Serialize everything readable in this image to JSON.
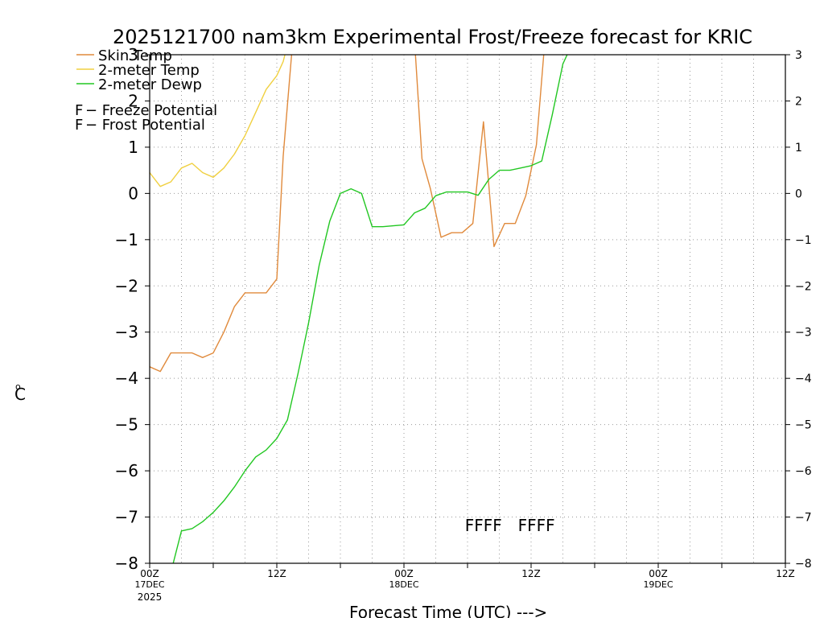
{
  "chart_data": {
    "type": "line",
    "title": "2025121700 nam3km Experimental Frost/Freeze forecast for KRIC",
    "xlabel": "Forecast Time (UTC) --->",
    "ylabel_unit": "o",
    "ylabel_letter": "C",
    "ylim": [
      -8,
      3
    ],
    "xlim_hours": [
      0,
      60
    ],
    "grid": true,
    "y_ticks": [
      -8,
      -7,
      -6,
      -5,
      -4,
      -3,
      -2,
      -1,
      0,
      1,
      2,
      3
    ],
    "y_tick_labels": [
      "−8",
      "−7",
      "−6",
      "−5",
      "−4",
      "−3",
      "−2",
      "−1",
      "0",
      "1",
      "2",
      "3"
    ],
    "x_ticks": [
      {
        "hour": 0,
        "label": "00Z",
        "date": "17DEC",
        "year": "2025"
      },
      {
        "hour": 12,
        "label": "12Z",
        "date": "",
        "year": ""
      },
      {
        "hour": 24,
        "label": "00Z",
        "date": "18DEC",
        "year": ""
      },
      {
        "hour": 36,
        "label": "12Z",
        "date": "",
        "year": ""
      },
      {
        "hour": 48,
        "label": "00Z",
        "date": "19DEC",
        "year": ""
      },
      {
        "hour": 60,
        "label": "12Z",
        "date": "",
        "year": ""
      }
    ],
    "series": [
      {
        "name": "Skin Temp",
        "color": "#e08a3c",
        "x": [
          0,
          1,
          2,
          3,
          4,
          5,
          6,
          7,
          8,
          9,
          10,
          11,
          12,
          12.6,
          13.5,
          25,
          25.7,
          26.5,
          27.5,
          28.5,
          29.5,
          30.5,
          31.5,
          32.5,
          33.5,
          34.5,
          35.5,
          36.5,
          37.3
        ],
        "values": [
          -3.75,
          -3.85,
          -3.45,
          -3.45,
          -3.45,
          -3.55,
          -3.45,
          -3.0,
          -2.45,
          -2.15,
          -2.15,
          -2.15,
          -1.85,
          0.8,
          3.3,
          3.3,
          0.75,
          0.1,
          -0.95,
          -0.85,
          -0.85,
          -0.65,
          1.55,
          -1.15,
          -0.65,
          -0.65,
          -0.05,
          1.05,
          3.3
        ]
      },
      {
        "name": "2-meter Temp",
        "color": "#f0d040",
        "x": [
          0,
          1,
          2,
          3,
          4,
          5,
          6,
          7,
          8,
          9,
          10,
          11,
          12,
          12.6,
          13.1
        ],
        "values": [
          0.45,
          0.15,
          0.25,
          0.55,
          0.65,
          0.45,
          0.35,
          0.55,
          0.85,
          1.25,
          1.75,
          2.25,
          2.55,
          2.85,
          3.3
        ]
      },
      {
        "name": "2-meter Dewp",
        "color": "#22c722",
        "x": [
          2,
          3,
          4,
          5,
          6,
          7,
          8,
          9,
          10,
          11,
          12,
          13,
          14,
          15,
          16,
          17,
          18,
          19,
          20,
          21,
          22,
          23,
          24,
          25,
          26,
          27,
          28,
          29,
          30,
          31,
          32,
          33,
          34,
          35,
          36,
          37,
          38,
          39,
          40,
          41,
          42,
          43,
          44
        ],
        "values": [
          -8.2,
          -7.3,
          -7.25,
          -7.1,
          -6.9,
          -6.65,
          -6.35,
          -6.0,
          -5.7,
          -5.55,
          -5.3,
          -4.9,
          -3.9,
          -2.8,
          -1.55,
          -0.6,
          0.0,
          0.1,
          0.0,
          -0.72,
          -0.72,
          -0.7,
          -0.68,
          -0.42,
          -0.32,
          -0.05,
          0.03,
          0.03,
          0.03,
          -0.04,
          0.3,
          0.5,
          0.5,
          0.55,
          0.6,
          0.7,
          1.7,
          2.8,
          3.3,
          3.3,
          3.3,
          3.15,
          3.3
        ]
      }
    ],
    "potential_legend": [
      {
        "letter": "F",
        "text": " − Freeze Potential",
        "color": "#cc33aa"
      },
      {
        "letter": "F",
        "text": " − Frost Potential",
        "color": "#4466dd"
      }
    ],
    "frost_markers": {
      "text_groups": [
        "FFFF",
        "FFFF"
      ],
      "hours": [
        31.5,
        36.5
      ],
      "value": -7.15,
      "color": "#4466dd"
    }
  }
}
